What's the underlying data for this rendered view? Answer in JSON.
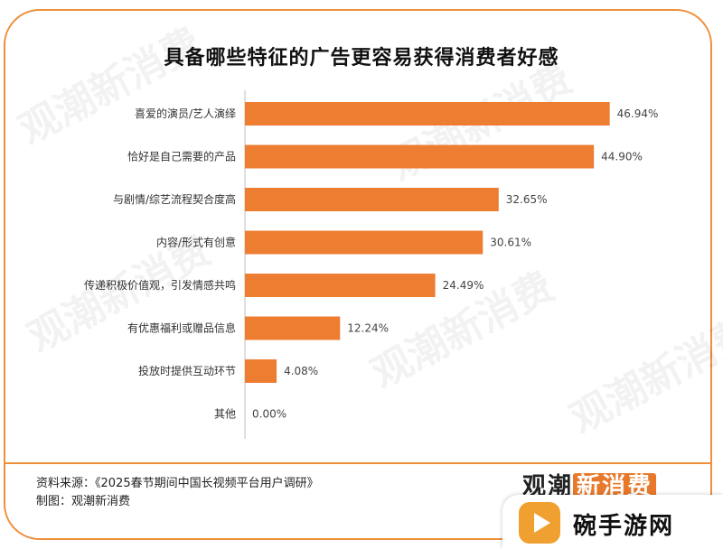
{
  "chart_data": {
    "type": "bar",
    "orientation": "horizontal",
    "title": "具备哪些特征的广告更容易获得消费者好感",
    "categories": [
      "喜爱的演员/艺人演绎",
      "恰好是自己需要的产品",
      "与剧情/综艺流程契合度高",
      "内容/形式有创意",
      "传递积极价值观，引发情感共鸣",
      "有优惠福利或赠品信息",
      "投放时提供互动环节",
      "其他"
    ],
    "values": [
      46.94,
      44.9,
      32.65,
      30.61,
      24.49,
      12.24,
      4.08,
      0.0
    ],
    "value_labels": [
      "46.94%",
      "44.90%",
      "32.65%",
      "30.61%",
      "24.49%",
      "12.24%",
      "4.08%",
      "0.00%"
    ],
    "xlim": [
      0,
      50
    ],
    "grid": false,
    "bar_color": "#ed7d31"
  },
  "footer": {
    "source": "资料来源：《2025春节期间中国长视频平台用户调研》",
    "made_by": "制图：观潮新消费"
  },
  "logo": {
    "part1": "观潮",
    "part2": "新消费"
  },
  "badge": {
    "text": "碗手游网",
    "icon": "play-icon"
  },
  "watermark": {
    "text": "观潮新消费"
  },
  "colors": {
    "accent": "#ef8f3a",
    "bar": "#ed7d31"
  }
}
